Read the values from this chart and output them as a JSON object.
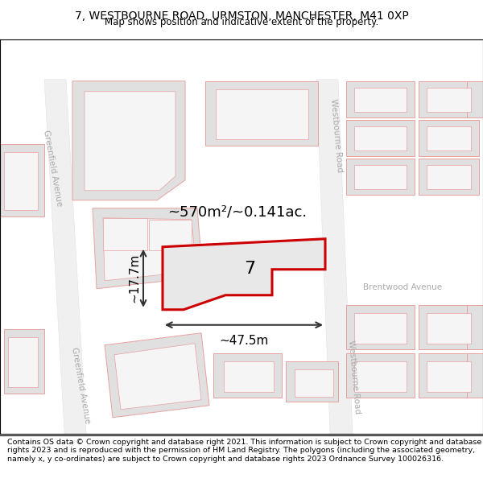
{
  "title_line1": "7, WESTBOURNE ROAD, URMSTON, MANCHESTER, M41 0XP",
  "title_line2": "Map shows position and indicative extent of the property.",
  "footer_text": "Contains OS data © Crown copyright and database right 2021. This information is subject to Crown copyright and database rights 2023 and is reproduced with the permission of HM Land Registry. The polygons (including the associated geometry, namely x, y co-ordinates) are subject to Crown copyright and database rights 2023 Ordnance Survey 100026316.",
  "map_bg": "#ffffff",
  "building_fill": "#e0e0e0",
  "building_stroke": "#e8a0a0",
  "road_fill": "#f8f8f8",
  "highlight_stroke": "#cc0000",
  "highlight_fill": "#e8e8e8",
  "area_label": "~570m²/~0.141ac.",
  "property_number": "7",
  "dim_width": "~47.5m",
  "dim_height": "~17.7m",
  "dim_color": "#333333",
  "street_color": "#aaaaaa",
  "title_fontsize": 10,
  "subtitle_fontsize": 8.5,
  "footer_fontsize": 6.8,
  "label_fontsize": 13,
  "number_fontsize": 16,
  "dim_fontsize": 11,
  "street_fontsize": 7.5
}
